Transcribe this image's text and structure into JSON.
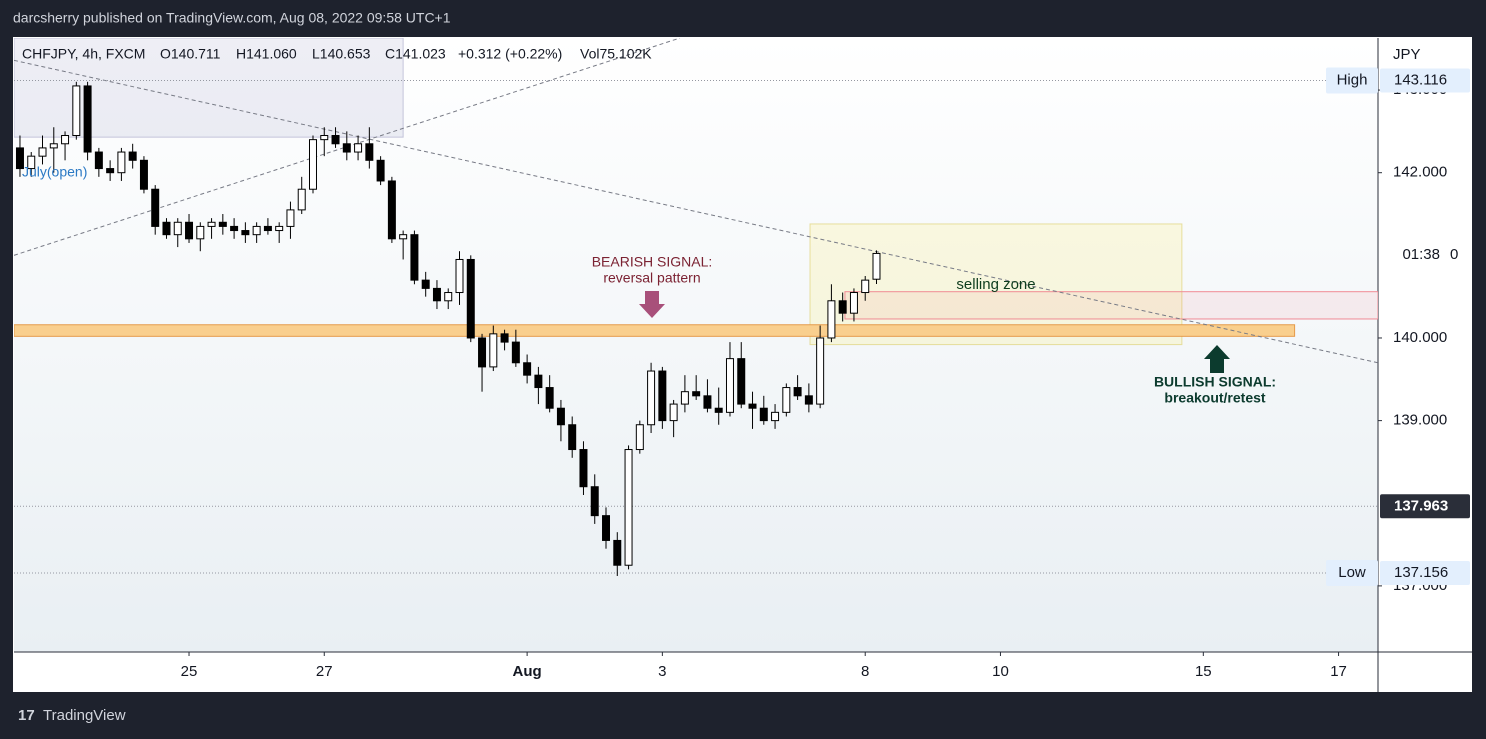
{
  "chart_data": {
    "type": "candlestick",
    "title": "darcsherry published on TradingView.com, Aug 08, 2022 09:58 UTC+1",
    "legend": [
      "CHFJPY, 4h, FXCM",
      "O140.711",
      "H141.060",
      "L140.653",
      "C141.023",
      "+0.312 (+0.22%)",
      "Vol75.102K"
    ],
    "currency": "JPY",
    "brand": "TradingView",
    "colors": {
      "up": "#ffffff",
      "down": "#000000",
      "border": "#000000"
    },
    "open": [
      142.3,
      142.05,
      142.2,
      142.3,
      142.35,
      142.45,
      143.05,
      142.25,
      142.05,
      142.0,
      142.25,
      142.15,
      141.8,
      141.4,
      141.25,
      141.4,
      141.2,
      141.35,
      141.4,
      141.35,
      141.3,
      141.25,
      141.35,
      141.3,
      141.35,
      141.55,
      141.8,
      142.4,
      142.45,
      142.35,
      142.25,
      142.35,
      142.15,
      141.9,
      141.2,
      141.25,
      140.7,
      140.6,
      140.45,
      140.55,
      140.95,
      140.0,
      139.65,
      140.05,
      139.95,
      139.7,
      139.55,
      139.4,
      139.15,
      138.95,
      138.65,
      138.2,
      137.85,
      137.55,
      137.25,
      138.65,
      138.95,
      139.6,
      139.0,
      139.2,
      139.35,
      139.3,
      139.15,
      139.1,
      139.75,
      139.2,
      139.15,
      139.0,
      139.1,
      139.4,
      139.3,
      139.2,
      140.0,
      140.45,
      140.3,
      140.55,
      140.711
    ],
    "high": [
      142.45,
      142.25,
      142.45,
      142.55,
      142.5,
      143.1,
      143.1,
      142.3,
      142.15,
      142.3,
      142.35,
      142.2,
      141.85,
      141.45,
      141.45,
      141.5,
      141.4,
      141.45,
      141.5,
      141.45,
      141.4,
      141.4,
      141.45,
      141.4,
      141.65,
      141.95,
      142.45,
      142.55,
      142.55,
      142.5,
      142.45,
      142.55,
      142.2,
      141.95,
      141.3,
      141.3,
      140.8,
      140.7,
      140.6,
      141.05,
      141.0,
      140.05,
      140.15,
      140.1,
      140.1,
      139.8,
      139.65,
      139.55,
      139.25,
      139.05,
      138.75,
      138.35,
      137.95,
      137.65,
      138.7,
      139.0,
      139.7,
      139.65,
      139.25,
      139.55,
      139.55,
      139.5,
      139.4,
      139.95,
      139.95,
      139.35,
      139.3,
      139.2,
      139.45,
      139.55,
      139.45,
      140.15,
      140.65,
      140.55,
      140.6,
      140.75,
      141.06
    ],
    "low": [
      141.95,
      141.95,
      142.1,
      142.0,
      142.15,
      142.4,
      142.15,
      141.95,
      141.9,
      141.9,
      142.05,
      141.75,
      141.25,
      141.2,
      141.1,
      141.15,
      141.05,
      141.2,
      141.25,
      141.2,
      141.15,
      141.15,
      141.25,
      141.15,
      141.2,
      141.5,
      141.75,
      142.2,
      142.3,
      142.15,
      142.15,
      142.05,
      141.85,
      141.15,
      140.95,
      140.65,
      140.5,
      140.35,
      140.35,
      140.4,
      139.95,
      139.35,
      139.6,
      139.85,
      139.65,
      139.45,
      139.2,
      139.1,
      138.75,
      138.55,
      138.1,
      137.75,
      137.45,
      137.12,
      137.2,
      138.6,
      138.85,
      138.9,
      138.8,
      139.1,
      139.25,
      139.1,
      138.95,
      139.05,
      139.15,
      138.9,
      138.95,
      138.9,
      139.05,
      139.25,
      139.1,
      139.15,
      139.95,
      140.2,
      140.2,
      140.45,
      140.653
    ],
    "close": [
      142.05,
      142.2,
      142.3,
      142.35,
      142.45,
      143.05,
      142.25,
      142.05,
      142.0,
      142.25,
      142.15,
      141.8,
      141.35,
      141.25,
      141.4,
      141.2,
      141.35,
      141.4,
      141.35,
      141.3,
      141.25,
      141.35,
      141.3,
      141.35,
      141.55,
      141.8,
      142.4,
      142.45,
      142.35,
      142.25,
      142.35,
      142.15,
      141.9,
      141.2,
      141.25,
      140.7,
      140.6,
      140.45,
      140.55,
      140.95,
      140.0,
      139.65,
      140.05,
      139.95,
      139.7,
      139.55,
      139.4,
      139.15,
      138.95,
      138.65,
      138.2,
      137.85,
      137.55,
      137.25,
      138.65,
      138.95,
      139.6,
      139.0,
      139.2,
      139.35,
      139.3,
      139.15,
      139.1,
      139.75,
      139.2,
      139.15,
      139.0,
      139.1,
      139.4,
      139.3,
      139.2,
      140.0,
      140.45,
      140.3,
      140.55,
      140.7,
      141.023
    ],
    "xlim": [
      -0.53,
      120.5
    ],
    "xticks": [
      {
        "value": 15,
        "label": "25"
      },
      {
        "value": 27,
        "label": "27"
      },
      {
        "value": 45,
        "label": "Aug"
      },
      {
        "value": 57,
        "label": "3"
      },
      {
        "value": 75,
        "label": "8"
      },
      {
        "value": 87,
        "label": "10"
      },
      {
        "value": 105,
        "label": "15"
      },
      {
        "value": 117,
        "label": "17"
      }
    ],
    "ylim": [
      136.2,
      143.63
    ],
    "yticks": [
      {
        "value": 137,
        "label": "137.000"
      },
      {
        "value": 139,
        "label": "139.000"
      },
      {
        "value": 140,
        "label": "140.000"
      },
      {
        "value": 142,
        "label": "142.000"
      },
      {
        "value": 143,
        "label": "143.000"
      }
    ],
    "price_lines": [
      {
        "label": "High",
        "value": 143.116
      },
      {
        "value": 137.963
      },
      {
        "label": "Low",
        "value": 137.156
      }
    ],
    "countdown": "01:38",
    "countdown_price": "0",
    "zones": [
      {
        "x": [
          -0.53,
          34
        ],
        "y": [
          142.43,
          143.63
        ],
        "fill": "rgba(150,150,190,0.16)",
        "stroke": "rgba(150,150,190,0.5)"
      },
      {
        "x": [
          70.1,
          103.1
        ],
        "y": [
          139.92,
          141.38
        ],
        "fill": "rgba(255,235,59,0.14)",
        "stroke": "rgba(210,190,60,0.45)"
      },
      {
        "x": [
          73.2,
          120.5
        ],
        "y": [
          140.23,
          140.56
        ],
        "fill": "rgba(242,54,69,0.07)",
        "stroke": "#f08a94"
      },
      {
        "x": [
          -0.53,
          113.1
        ],
        "y": [
          140.02,
          140.16
        ],
        "fill": "#f9cf8e",
        "stroke": "#e59a4a"
      }
    ],
    "trend_lines": [
      {
        "x": [
          -0.53,
          120.5
        ],
        "y": [
          143.36,
          139.7
        ]
      },
      {
        "x": [
          -0.53,
          58.56
        ],
        "y": [
          141.0,
          143.63
        ]
      }
    ],
    "annotations": {
      "open_label": "July(open)",
      "bearish": [
        "BEARISH SIGNAL:",
        "reversal pattern"
      ],
      "zone": "selling zone",
      "bullish": [
        "BULLISH SIGNAL:",
        "breakout/retest"
      ]
    }
  }
}
